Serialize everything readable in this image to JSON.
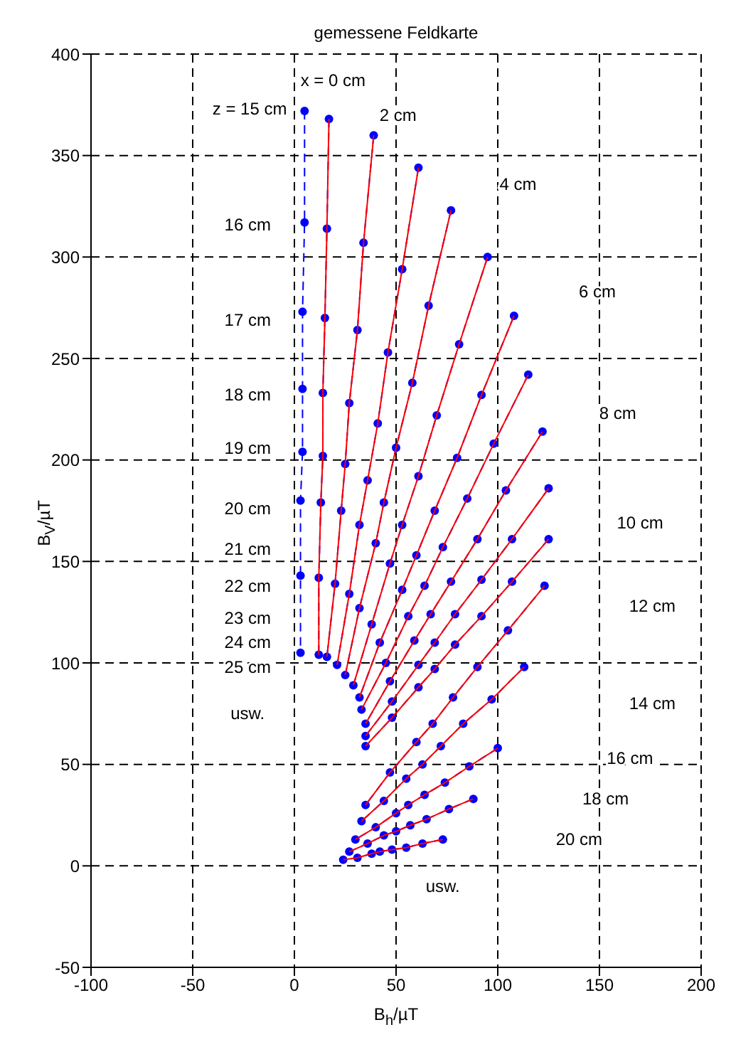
{
  "chart_data": {
    "type": "line",
    "title": "gemessene Feldkarte",
    "xlabel": "B$_{h}$/µT",
    "ylabel": "B$_{V}$/µT",
    "xlim": [
      -100,
      200
    ],
    "xticks": [
      -100,
      -50,
      0,
      50,
      100,
      150,
      200
    ],
    "ylim": [
      -50,
      400
    ],
    "yticks": [
      -50,
      0,
      50,
      100,
      150,
      200,
      250,
      300,
      350,
      400
    ],
    "grid": true,
    "annotations": [
      "x = 0 cm",
      "z = 15 cm",
      "2 cm",
      "4 cm",
      "6 cm",
      "8 cm",
      "10 cm",
      "12 cm",
      "14 cm",
      "16 cm",
      "18 cm",
      "20 cm",
      "usw.",
      "16 cm",
      "17 cm",
      "18 cm",
      "19 cm",
      "20 cm",
      "21 cm",
      "22 cm",
      "23 cm",
      "24 cm",
      "25 cm",
      "usw."
    ],
    "series": [
      {
        "type": "line",
        "color": "#0000ff",
        "line_style": "dashed",
        "marker": "circle",
        "x": [
          5,
          5,
          4,
          4,
          4,
          3,
          3,
          3
        ],
        "values": [
          372,
          317,
          273,
          235,
          204,
          180,
          143,
          105
        ]
      },
      {
        "type": "line",
        "color": "#0000ff",
        "line_style": "dashed",
        "marker": "circle",
        "x": [
          17,
          16,
          15,
          14,
          14,
          13,
          12,
          12
        ],
        "values": [
          368,
          314,
          270,
          233,
          202,
          179,
          142,
          104
        ]
      },
      {
        "type": "line",
        "color": "#0000ff",
        "line_style": "dashed",
        "marker": "circle",
        "x": [
          39,
          34,
          31,
          27,
          25,
          23,
          20,
          16
        ],
        "values": [
          360,
          307,
          264,
          228,
          198,
          175,
          139,
          103
        ]
      },
      {
        "type": "line",
        "color": "#0000ff",
        "line_style": "dashed",
        "marker": "circle",
        "x": [
          61,
          53,
          46,
          41,
          36,
          32,
          27,
          21
        ],
        "values": [
          344,
          294,
          253,
          218,
          190,
          168,
          134,
          99
        ]
      },
      {
        "type": "line",
        "color": "#0000ff",
        "line_style": "dashed",
        "marker": "circle",
        "x": [
          77,
          66,
          58,
          50,
          44,
          40,
          32,
          25
        ],
        "values": [
          323,
          276,
          238,
          206,
          179,
          159,
          127,
          94
        ]
      },
      {
        "type": "line",
        "color": "#0000ff",
        "line_style": "dashed",
        "marker": "circle",
        "x": [
          95,
          81,
          70,
          61,
          53,
          47,
          38,
          29
        ],
        "values": [
          300,
          257,
          222,
          192,
          168,
          149,
          119,
          89
        ]
      },
      {
        "type": "line",
        "color": "#0000ff",
        "line_style": "dashed",
        "marker": "circle",
        "x": [
          108,
          92,
          80,
          69,
          60,
          53,
          42,
          32
        ],
        "values": [
          271,
          232,
          201,
          175,
          153,
          136,
          110,
          83
        ]
      },
      {
        "type": "line",
        "color": "#0000ff",
        "line_style": "dashed",
        "marker": "circle",
        "x": [
          115,
          98,
          85,
          73,
          64,
          56,
          45,
          33
        ],
        "values": [
          242,
          208,
          181,
          157,
          138,
          123,
          100,
          77
        ]
      },
      {
        "type": "line",
        "color": "#0000ff",
        "line_style": "dashed",
        "marker": "circle",
        "x": [
          122,
          104,
          90,
          77,
          67,
          59,
          47,
          35
        ],
        "values": [
          214,
          185,
          161,
          140,
          124,
          111,
          91,
          70
        ]
      },
      {
        "type": "line",
        "color": "#0000ff",
        "line_style": "dashed",
        "marker": "circle",
        "x": [
          125,
          107,
          92,
          79,
          69,
          61,
          48,
          35
        ],
        "values": [
          186,
          161,
          141,
          124,
          110,
          99,
          81,
          64
        ]
      },
      {
        "type": "line",
        "color": "#0000ff",
        "line_style": "dashed",
        "marker": "circle",
        "x": [
          125,
          107,
          92,
          79,
          69,
          61,
          48,
          35
        ],
        "values": [
          161,
          140,
          123,
          109,
          97,
          88,
          73,
          59
        ]
      },
      {
        "type": "line",
        "color": "#0000ff",
        "line_style": "dashed",
        "marker": "circle",
        "x": [
          123,
          105,
          90,
          78,
          68,
          60,
          47,
          35
        ],
        "values": [
          138,
          116,
          98,
          83,
          70,
          61,
          46,
          30
        ]
      },
      {
        "type": "line",
        "color": "#0000ff",
        "line_style": "dashed",
        "marker": "circle",
        "x": [
          113,
          97,
          83,
          72,
          63,
          55,
          44,
          33
        ],
        "values": [
          98,
          82,
          70,
          59,
          50,
          43,
          32,
          22
        ]
      },
      {
        "type": "line",
        "color": "#0000ff",
        "line_style": "dashed",
        "marker": "circle",
        "x": [
          100,
          86,
          74,
          64,
          56,
          50,
          40,
          30
        ],
        "values": [
          58,
          49,
          41,
          35,
          30,
          26,
          19,
          13
        ]
      },
      {
        "type": "line",
        "color": "#0000ff",
        "line_style": "dashed",
        "marker": "circle",
        "x": [
          88,
          76,
          65,
          57,
          50,
          44,
          36,
          27
        ],
        "values": [
          33,
          28,
          23,
          20,
          17,
          15,
          11,
          7
        ]
      },
      {
        "type": "line",
        "color": "#0000ff",
        "line_style": "dashed",
        "marker": "circle",
        "x": [
          73,
          63,
          55,
          48,
          42,
          38,
          31,
          24
        ],
        "values": [
          13,
          11,
          9,
          8,
          7,
          6,
          4,
          3
        ]
      },
      {
        "type": "line",
        "color": "#ff0000",
        "line_style": "solid",
        "marker": "none",
        "x": [
          17,
          16,
          15,
          14,
          14,
          13,
          12,
          12
        ],
        "values": [
          368,
          314,
          270,
          233,
          202,
          179,
          142,
          104
        ]
      },
      {
        "type": "line",
        "color": "#ff0000",
        "line_style": "solid",
        "marker": "none",
        "x": [
          39,
          34,
          31,
          27,
          25,
          23,
          20,
          16
        ],
        "values": [
          360,
          307,
          264,
          228,
          198,
          175,
          139,
          103
        ]
      },
      {
        "type": "line",
        "color": "#ff0000",
        "line_style": "solid",
        "marker": "none",
        "x": [
          61,
          53,
          46,
          41,
          36,
          32,
          27,
          21
        ],
        "values": [
          344,
          294,
          253,
          218,
          190,
          168,
          134,
          99
        ]
      },
      {
        "type": "line",
        "color": "#ff0000",
        "line_style": "solid",
        "marker": "none",
        "x": [
          77,
          66,
          58,
          50,
          44,
          40,
          32,
          25
        ],
        "values": [
          323,
          276,
          238,
          206,
          179,
          159,
          127,
          94
        ]
      },
      {
        "type": "line",
        "color": "#ff0000",
        "line_style": "solid",
        "marker": "none",
        "x": [
          95,
          81,
          70,
          61,
          53,
          47,
          38,
          29
        ],
        "values": [
          300,
          257,
          222,
          192,
          168,
          149,
          119,
          89
        ]
      },
      {
        "type": "line",
        "color": "#ff0000",
        "line_style": "solid",
        "marker": "none",
        "x": [
          108,
          92,
          80,
          69,
          60,
          53,
          42,
          32
        ],
        "values": [
          271,
          232,
          201,
          175,
          153,
          136,
          110,
          83
        ]
      },
      {
        "type": "line",
        "color": "#ff0000",
        "line_style": "solid",
        "marker": "none",
        "x": [
          115,
          98,
          85,
          73,
          64,
          56,
          45,
          33
        ],
        "values": [
          242,
          208,
          181,
          157,
          138,
          123,
          100,
          77
        ]
      },
      {
        "type": "line",
        "color": "#ff0000",
        "line_style": "solid",
        "marker": "none",
        "x": [
          122,
          104,
          90,
          77,
          67,
          59,
          47,
          35
        ],
        "values": [
          214,
          185,
          161,
          140,
          124,
          111,
          91,
          70
        ]
      },
      {
        "type": "line",
        "color": "#ff0000",
        "line_style": "solid",
        "marker": "none",
        "x": [
          125,
          107,
          92,
          79,
          69,
          61,
          48,
          35
        ],
        "values": [
          186,
          161,
          141,
          124,
          110,
          99,
          81,
          64
        ]
      },
      {
        "type": "line",
        "color": "#ff0000",
        "line_style": "solid",
        "marker": "none",
        "x": [
          125,
          107,
          92,
          79,
          69,
          61,
          48,
          35
        ],
        "values": [
          161,
          140,
          123,
          109,
          97,
          88,
          73,
          59
        ]
      },
      {
        "type": "line",
        "color": "#ff0000",
        "line_style": "solid",
        "marker": "none",
        "x": [
          123,
          105,
          90,
          78,
          68,
          60,
          47,
          35
        ],
        "values": [
          138,
          116,
          98,
          83,
          70,
          61,
          46,
          30
        ]
      },
      {
        "type": "line",
        "color": "#ff0000",
        "line_style": "solid",
        "marker": "none",
        "x": [
          113,
          97,
          83,
          72,
          63,
          55,
          44,
          33
        ],
        "values": [
          98,
          82,
          70,
          59,
          50,
          43,
          32,
          22
        ]
      },
      {
        "type": "line",
        "color": "#ff0000",
        "line_style": "solid",
        "marker": "none",
        "x": [
          100,
          86,
          74,
          64,
          56,
          50,
          40,
          30
        ],
        "values": [
          58,
          49,
          41,
          35,
          30,
          26,
          19,
          13
        ]
      },
      {
        "type": "line",
        "color": "#ff0000",
        "line_style": "solid",
        "marker": "none",
        "x": [
          88,
          76,
          65,
          57,
          50,
          44,
          36,
          27
        ],
        "values": [
          33,
          28,
          23,
          20,
          17,
          15,
          11,
          7
        ]
      },
      {
        "type": "line",
        "color": "#ff0000",
        "line_style": "solid",
        "marker": "none",
        "x": [
          73,
          63,
          55,
          48,
          42,
          38,
          31,
          24
        ],
        "values": [
          13,
          11,
          9,
          8,
          7,
          6,
          4,
          3
        ]
      }
    ]
  }
}
